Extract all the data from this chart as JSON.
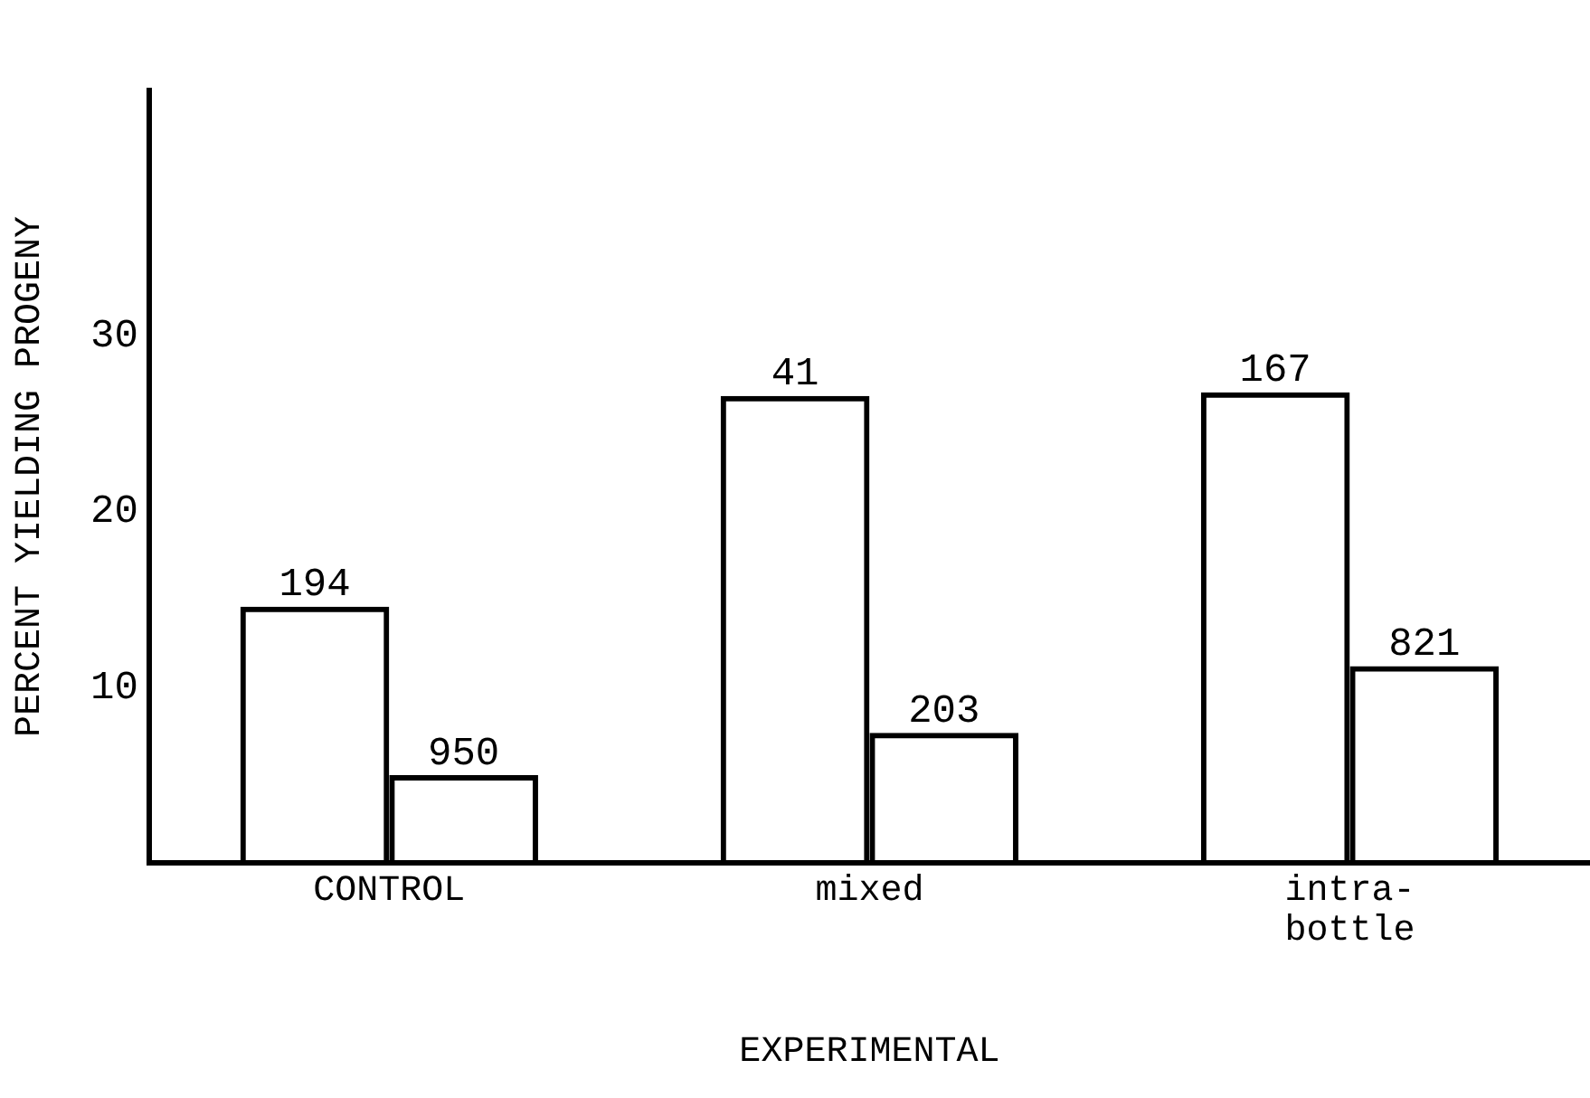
{
  "chart_data": {
    "type": "bar",
    "xlabel": "EXPERIMENTAL",
    "ylabel": "PERCENT YIELDING PROGENY",
    "categories": [
      "CONTROL",
      "mixed",
      "intra-\nbottle"
    ],
    "series": [
      {
        "color": "#000000",
        "values": [
          14.6,
          26.6,
          26.8
        ]
      },
      {
        "color": "#000000",
        "values": [
          5.0,
          7.4,
          11.2
        ]
      }
    ],
    "annotations": [
      {
        "text": "194",
        "x": "CONTROL",
        "y": 14.6
      },
      {
        "text": "41",
        "x": "mixed",
        "y": 26.6
      },
      {
        "text": "167",
        "x": "intra-\nbottle",
        "y": 26.8
      },
      {
        "text": "950",
        "x": "CONTROL",
        "y": 5.0
      },
      {
        "text": "203",
        "x": "mixed",
        "y": 7.4
      },
      {
        "text": "821",
        "x": "intra-\nbottle",
        "y": 11.2
      }
    ],
    "ylim": [
      0,
      44
    ],
    "yticks": [
      10,
      20,
      30
    ],
    "grid": false,
    "legend": false
  }
}
